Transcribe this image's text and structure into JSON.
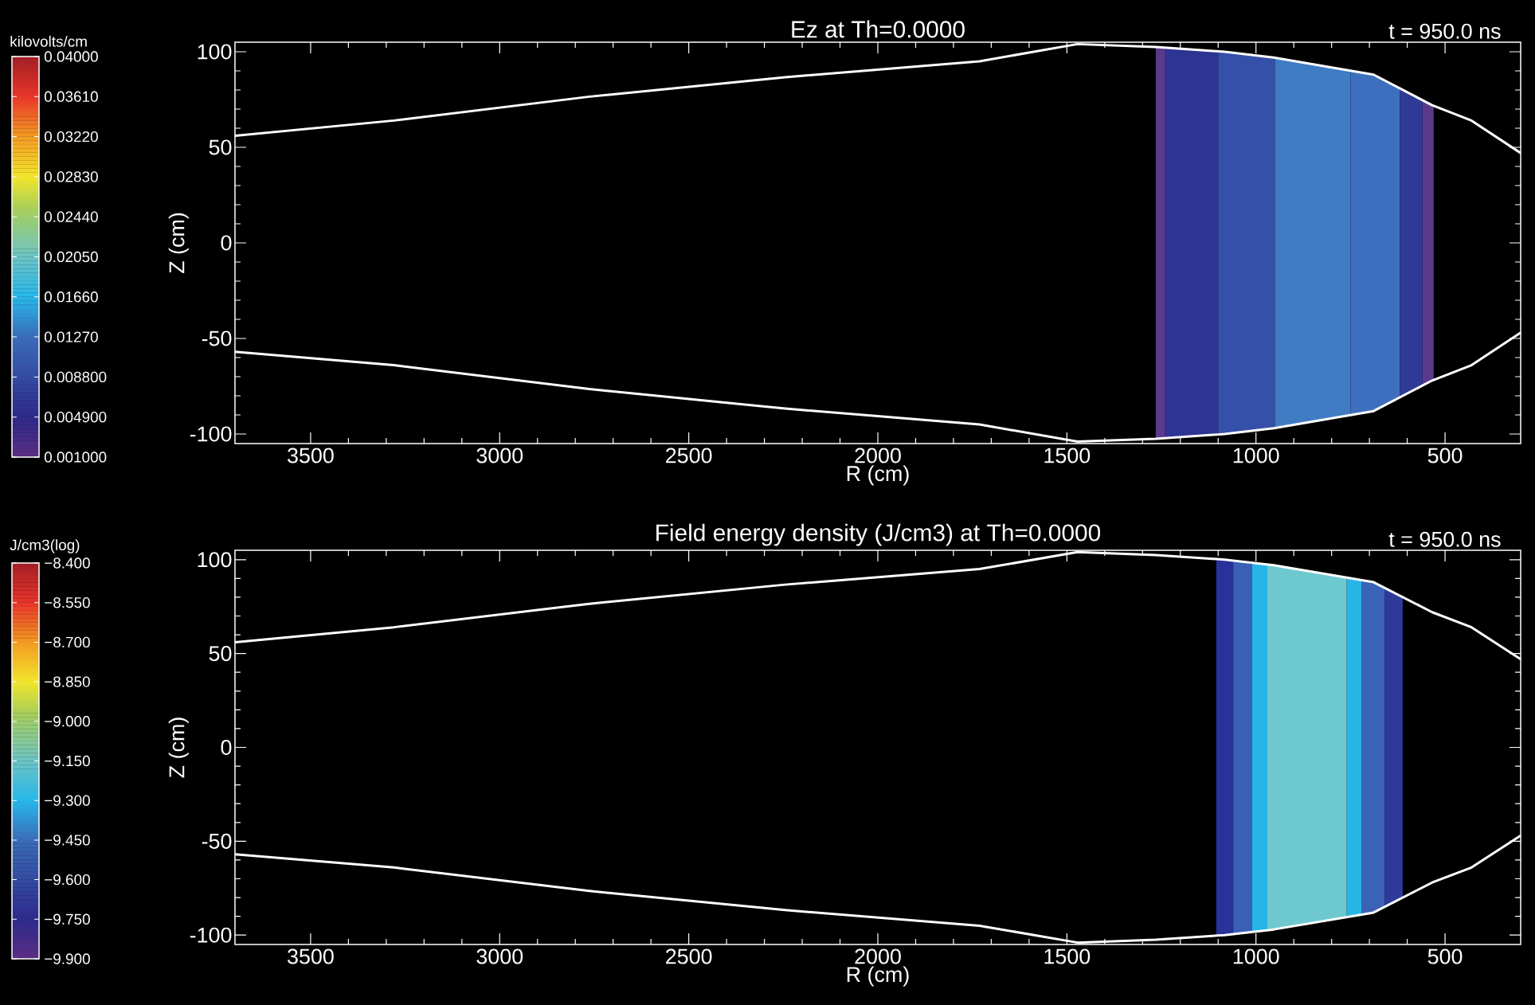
{
  "chart_data": [
    {
      "type": "line",
      "title": "Ez at Th=0.0000",
      "xlabel": "R (cm)",
      "ylabel": "Z (cm)",
      "annotations": [
        "t = 950.0 ns"
      ],
      "x": [
        3700,
        3280,
        2763,
        2245,
        1731,
        1472,
        1265,
        1083,
        953,
        689,
        534,
        430,
        300
      ],
      "series": [
        {
          "color": "#ffffff",
          "values": [
            56,
            64,
            76.5,
            86.7,
            95,
            104,
            102.5,
            100,
            97,
            88,
            72,
            64,
            47
          ]
        },
        {
          "color": "#ffffff",
          "values": [
            -57,
            -64,
            -76.5,
            -86.7,
            -95,
            -104,
            -102.5,
            -100,
            -97,
            -88,
            -72,
            -64,
            -47
          ]
        }
      ],
      "xlim": [
        3700,
        300
      ],
      "ylim": [
        -105,
        105
      ],
      "xticks": [
        3500,
        3000,
        2500,
        2000,
        1500,
        1000,
        500
      ],
      "yticks": [
        -100,
        -50,
        0,
        50,
        100
      ],
      "bands": [
        {
          "axis": "x",
          "from": 1265,
          "to": 1240,
          "color": "#5b3a8c"
        },
        {
          "axis": "x",
          "from": 1240,
          "to": 1100,
          "color": "#2d3592"
        },
        {
          "axis": "x",
          "from": 1100,
          "to": 950,
          "color": "#3550a8"
        },
        {
          "axis": "x",
          "from": 950,
          "to": 750,
          "color": "#3f7cc4"
        },
        {
          "axis": "x",
          "from": 750,
          "to": 620,
          "color": "#3d6fbe"
        },
        {
          "axis": "x",
          "from": 620,
          "to": 560,
          "color": "#2e3a96"
        },
        {
          "axis": "x",
          "from": 560,
          "to": 530,
          "color": "#5b3a8c"
        }
      ],
      "clabel": "kilovolts/cm",
      "clim": [
        0.001,
        0.04
      ],
      "cticks": [
        {
          "value": 0.04,
          "label": "0.04000"
        },
        {
          "value": 0.0361,
          "label": "0.03610"
        },
        {
          "value": 0.0322,
          "label": "0.03220"
        },
        {
          "value": 0.0283,
          "label": "0.02830"
        },
        {
          "value": 0.0244,
          "label": "0.02440"
        },
        {
          "value": 0.0205,
          "label": "0.02050"
        },
        {
          "value": 0.0166,
          "label": "0.01660"
        },
        {
          "value": 0.0127,
          "label": "0.01270"
        },
        {
          "value": 0.0088,
          "label": "0.008800"
        },
        {
          "value": 0.0049,
          "label": "0.004900"
        },
        {
          "value": 0.001,
          "label": "0.001000"
        }
      ],
      "grid": false,
      "line_style": "solid"
    },
    {
      "type": "line",
      "title": "Field energy density (J/cm3) at Th=0.0000",
      "xlabel": "R (cm)",
      "ylabel": "Z (cm)",
      "annotations": [
        "t = 950.0 ns"
      ],
      "x": [
        3700,
        3280,
        2763,
        2245,
        1731,
        1472,
        1265,
        1083,
        953,
        689,
        534,
        430,
        300
      ],
      "series": [
        {
          "color": "#ffffff",
          "values": [
            56,
            64,
            76.5,
            86.7,
            95,
            104,
            102.5,
            100,
            97,
            88,
            72,
            64,
            47
          ]
        },
        {
          "color": "#ffffff",
          "values": [
            -57,
            -64,
            -76.5,
            -86.7,
            -95,
            -104,
            -102.5,
            -100,
            -97,
            -88,
            -72,
            -64,
            -47
          ]
        }
      ],
      "xlim": [
        3700,
        300
      ],
      "ylim": [
        -105,
        105
      ],
      "xticks": [
        3500,
        3000,
        2500,
        2000,
        1500,
        1000,
        500
      ],
      "yticks": [
        -100,
        -50,
        0,
        50,
        100
      ],
      "bands": [
        {
          "axis": "x",
          "from": 1105,
          "to": 1060,
          "color": "#27329a"
        },
        {
          "axis": "x",
          "from": 1060,
          "to": 1010,
          "color": "#3a5fb5"
        },
        {
          "axis": "x",
          "from": 1010,
          "to": 970,
          "color": "#27b5e8"
        },
        {
          "axis": "x",
          "from": 970,
          "to": 760,
          "color": "#6ec9cf"
        },
        {
          "axis": "x",
          "from": 760,
          "to": 720,
          "color": "#27b5e8"
        },
        {
          "axis": "x",
          "from": 720,
          "to": 660,
          "color": "#3a62b5"
        },
        {
          "axis": "x",
          "from": 660,
          "to": 612,
          "color": "#2d3a9a"
        }
      ],
      "clabel": "J/cm3(log)",
      "clim": [
        -9.9,
        -8.4
      ],
      "cticks": [
        {
          "value": -8.4,
          "label": "−8.400"
        },
        {
          "value": -8.55,
          "label": "−8.550"
        },
        {
          "value": -8.7,
          "label": "−8.700"
        },
        {
          "value": -8.85,
          "label": "−8.850"
        },
        {
          "value": -9.0,
          "label": "−9.000"
        },
        {
          "value": -9.15,
          "label": "−9.150"
        },
        {
          "value": -9.3,
          "label": "−9.300"
        },
        {
          "value": -9.45,
          "label": "−9.450"
        },
        {
          "value": -9.6,
          "label": "−9.600"
        },
        {
          "value": -9.75,
          "label": "−9.750"
        },
        {
          "value": -9.9,
          "label": "−9.900"
        }
      ],
      "grid": false,
      "line_style": "solid"
    }
  ]
}
